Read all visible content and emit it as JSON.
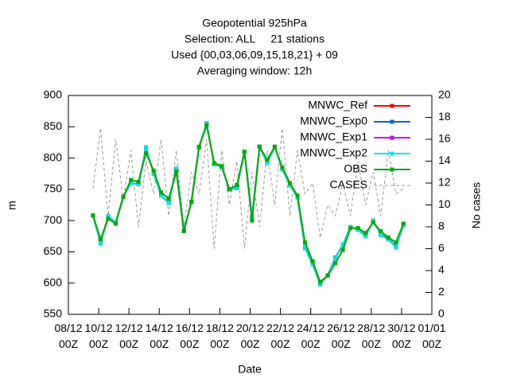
{
  "chart_data": {
    "type": "line",
    "title": [
      "Geopotential 925hPa",
      "Selection: ALL     21 stations",
      "Used {00,03,06,09,15,18,21} + 09",
      "Averaging window: 12h"
    ],
    "x_label": "Date",
    "y_label": "m",
    "y2_label": "No cases",
    "x": [
      1.625,
      2.125,
      2.625,
      3.125,
      3.625,
      4.125,
      4.625,
      5.125,
      5.625,
      6.125,
      6.625,
      7.125,
      7.625,
      8.125,
      8.625,
      9.125,
      9.625,
      10.125,
      10.625,
      11.125,
      11.625,
      12.125,
      12.625,
      13.125,
      13.625,
      14.125,
      14.625,
      15.125,
      15.625,
      16.125,
      16.625,
      17.125,
      17.625,
      18.125,
      18.625,
      19.125,
      19.625,
      20.125,
      20.625,
      21.125,
      21.625,
      22.125
    ],
    "xlim": [
      0,
      24
    ],
    "xticks": [
      {
        "value": 0,
        "label": "08/12\n00Z"
      },
      {
        "value": 2,
        "label": "10/12\n00Z"
      },
      {
        "value": 4,
        "label": "12/12\n00Z"
      },
      {
        "value": 6,
        "label": "14/12\n00Z"
      },
      {
        "value": 8,
        "label": "16/12\n00Z"
      },
      {
        "value": 10,
        "label": "18/12\n00Z"
      },
      {
        "value": 12,
        "label": "20/12\n00Z"
      },
      {
        "value": 14,
        "label": "22/12\n00Z"
      },
      {
        "value": 16,
        "label": "24/12\n00Z"
      },
      {
        "value": 18,
        "label": "26/12\n00Z"
      },
      {
        "value": 20,
        "label": "28/12\n00Z"
      },
      {
        "value": 22,
        "label": "30/12\n00Z"
      },
      {
        "value": 24,
        "label": "01/01\n00Z"
      }
    ],
    "ylim": [
      550,
      900
    ],
    "yticks": [
      550,
      600,
      650,
      700,
      750,
      800,
      850,
      900
    ],
    "y2lim": [
      0,
      20
    ],
    "y2ticks": [
      0,
      2,
      4,
      6,
      8,
      10,
      12,
      14,
      16,
      18,
      20
    ],
    "legend": "upper right",
    "series": [
      {
        "name": "MNWC_Ref",
        "color": "#ff0000",
        "values": [
          708,
          665,
          707,
          697,
          738,
          760,
          758,
          816,
          776,
          740,
          729,
          782,
          684,
          730,
          817,
          855,
          790,
          786,
          750,
          752,
          810,
          705,
          818,
          793,
          818,
          782,
          757,
          737,
          657,
          631,
          599,
          613,
          640,
          661,
          690,
          685,
          676,
          699,
          678,
          671,
          658,
          694
        ]
      },
      {
        "name": "MNWC_Exp0",
        "color": "#0066cc",
        "values": [
          708,
          664,
          707,
          697,
          738,
          760,
          758,
          816,
          776,
          740,
          729,
          782,
          684,
          730,
          817,
          855,
          790,
          786,
          750,
          752,
          810,
          705,
          818,
          793,
          818,
          782,
          757,
          737,
          657,
          631,
          598,
          613,
          641,
          661,
          690,
          685,
          676,
          699,
          678,
          671,
          658,
          694
        ]
      },
      {
        "name": "MNWC_Exp1",
        "color": "#cc00ff",
        "values": [
          708,
          664,
          707,
          697,
          738,
          760,
          758,
          817,
          775,
          740,
          728,
          783,
          684,
          730,
          817,
          856,
          790,
          786,
          750,
          752,
          810,
          706,
          818,
          792,
          818,
          782,
          757,
          737,
          656,
          630,
          598,
          613,
          640,
          662,
          690,
          685,
          675,
          700,
          677,
          670,
          657,
          693
        ]
      },
      {
        "name": "MNWC_Exp2",
        "color": "#00e5e5",
        "values": [
          708,
          663,
          707,
          697,
          738,
          760,
          758,
          817,
          775,
          740,
          728,
          783,
          684,
          730,
          817,
          856,
          790,
          786,
          750,
          752,
          810,
          706,
          818,
          792,
          818,
          782,
          757,
          737,
          656,
          630,
          598,
          613,
          640,
          662,
          690,
          685,
          675,
          700,
          677,
          670,
          657,
          693
        ]
      },
      {
        "name": "OBS",
        "color": "#00aa00",
        "values": [
          708,
          670,
          703,
          695,
          738,
          765,
          762,
          808,
          780,
          745,
          735,
          778,
          683,
          730,
          818,
          852,
          792,
          787,
          750,
          757,
          810,
          700,
          818,
          797,
          818,
          785,
          760,
          740,
          665,
          635,
          602,
          612,
          632,
          653,
          688,
          688,
          680,
          697,
          683,
          673,
          665,
          695
        ]
      },
      {
        "name": "CASES",
        "color": "#999999",
        "axis": "y2",
        "values": [
          11.5,
          17,
          9,
          16,
          10.5,
          15,
          8,
          14,
          11,
          16,
          9,
          15,
          8,
          13,
          11,
          16,
          6,
          15,
          10,
          14,
          6,
          13,
          8,
          15,
          10,
          17,
          9,
          15,
          11,
          12,
          7,
          10,
          9,
          12,
          9,
          14,
          10,
          13,
          9,
          15,
          11,
          11.5
        ]
      }
    ]
  }
}
